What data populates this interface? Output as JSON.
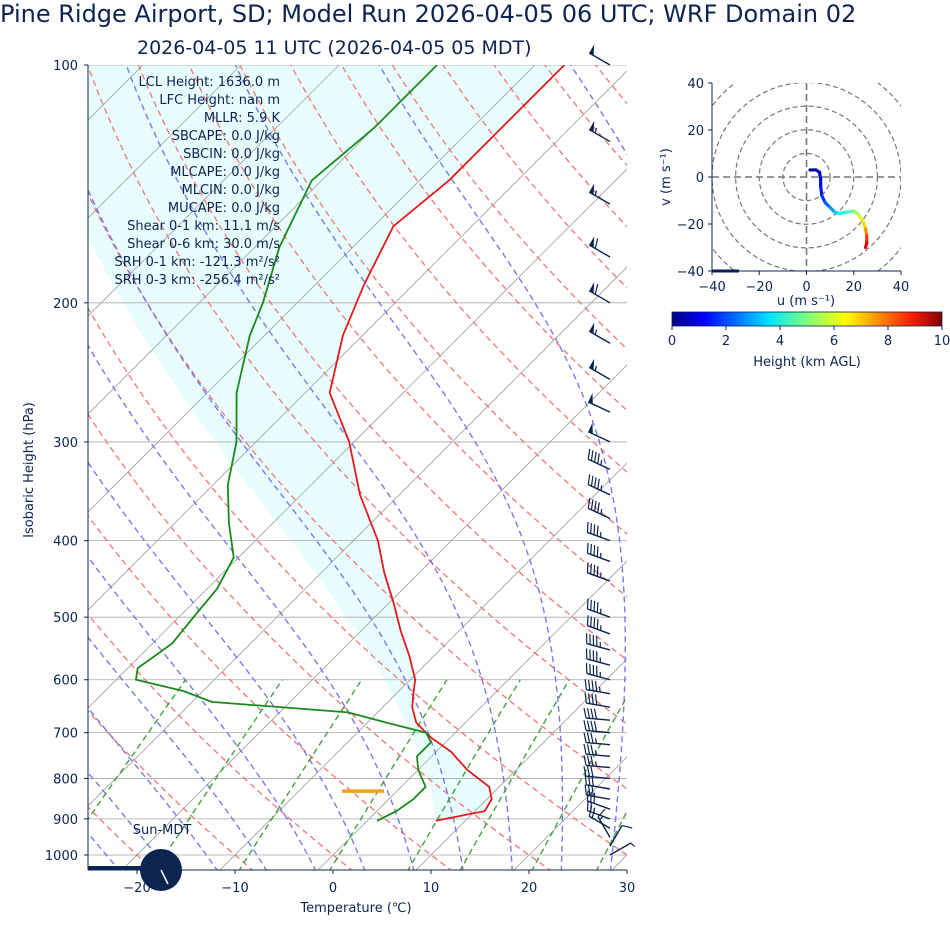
{
  "header": {
    "title": "Pine Ridge Airport, SD; Model Run 2026-04-05 06 UTC; WRF Domain 02",
    "subtitle": "2026-04-05 11 UTC  (2026-04-05 05 MDT)"
  },
  "colors": {
    "text": "#0b2450",
    "temperature": "#e31a1c",
    "dewpoint": "#1a8a1a",
    "dry_adiabat": "#f07070",
    "moist_adiabat": "#6a6aee",
    "mixing_ratio": "#2a9a2a",
    "cape_shade": "#e8fdfd",
    "lcl_marker": "#f5a01a",
    "barb": "#0b2450"
  },
  "indices": [
    "LCL Height: 1636.0 m",
    "LFC Height: nan m",
    "MLLR: 5.9 K",
    "SBCAPE: 0.0 J/kg",
    "SBCIN: 0.0 J/kg",
    "MLCAPE: 0.0 J/kg",
    "MLCIN: 0.0 J/kg",
    "MUCAPE: 0.0 J/kg",
    "Shear 0-1 km: 11.1 m/s",
    "Shear 0-6 km: 30.0 m/s",
    "SRH 0-1 km: -121.3 m²/s²",
    "SRH 0-3 km: -256.4 m²/s²"
  ],
  "sun_label": "Sun-MDT",
  "chart_data": [
    {
      "type": "line",
      "name": "skew-t",
      "xlabel": "Temperature (℃)",
      "ylabel": "Isobaric Height (hPa)",
      "xlim": [
        -26,
        30
      ],
      "ylim": [
        1050,
        100
      ],
      "y_scale": "log",
      "xticks": [
        -20,
        -10,
        0,
        10,
        20,
        30
      ],
      "xtick_labels": [
        "−20",
        "−10",
        "0",
        "10",
        "20",
        "30"
      ],
      "yticks": [
        1000,
        900,
        800,
        700,
        600,
        500,
        400,
        300,
        200,
        100
      ],
      "ytick_labels": [
        "1000",
        "900",
        "800",
        "700",
        "600",
        "500",
        "400",
        "300",
        "200",
        "100"
      ],
      "temperature": {
        "p": [
          905,
          880,
          850,
          820,
          780,
          740,
          710,
          680,
          650,
          620,
          600,
          560,
          520,
          480,
          440,
          400,
          350,
          300,
          260,
          220,
          190,
          160,
          140,
          100
        ],
        "t": [
          7,
          11,
          10.5,
          9,
          5,
          1.5,
          -2,
          -5,
          -7,
          -8.5,
          -9.5,
          -12.5,
          -16,
          -19.5,
          -23.5,
          -27.5,
          -34,
          -40.5,
          -47.5,
          -52,
          -55,
          -58,
          -57,
          -57
        ]
      },
      "dewpoint": {
        "p": [
          905,
          880,
          850,
          820,
          780,
          750,
          720,
          700,
          680,
          660,
          640,
          620,
          600,
          580,
          540,
          500,
          460,
          420,
          380,
          340,
          300,
          260,
          220,
          200,
          170,
          140,
          120,
          100
        ],
        "t": [
          1,
          2,
          2.5,
          2.5,
          0,
          -1.5,
          -1.5,
          -3,
          -8,
          -13,
          -28,
          -32,
          -38,
          -39,
          -38,
          -38.5,
          -39,
          -40.5,
          -44.5,
          -48.5,
          -52,
          -57,
          -61.5,
          -63.5,
          -67.5,
          -71,
          -70,
          -70
        ]
      },
      "lcl_pressure": 830,
      "wind_barbs": {
        "p": [
          1000,
          975,
          950,
          925,
          900,
          875,
          850,
          825,
          800,
          775,
          750,
          725,
          700,
          675,
          650,
          625,
          600,
          575,
          550,
          525,
          500,
          450,
          425,
          400,
          375,
          350,
          325,
          300,
          275,
          250,
          225,
          200,
          175,
          150,
          125,
          100
        ],
        "speed_kt": [
          5,
          10,
          15,
          20,
          25,
          30,
          30,
          30,
          30,
          35,
          35,
          35,
          40,
          40,
          40,
          45,
          45,
          45,
          45,
          45,
          45,
          45,
          45,
          45,
          45,
          45,
          45,
          50,
          50,
          55,
          55,
          60,
          60,
          55,
          55,
          50
        ],
        "direction_deg": [
          60,
          30,
          330,
          300,
          290,
          290,
          280,
          280,
          275,
          275,
          275,
          275,
          275,
          275,
          280,
          280,
          285,
          285,
          285,
          290,
          290,
          290,
          290,
          290,
          295,
          295,
          295,
          295,
          295,
          300,
          300,
          300,
          300,
          300,
          300,
          300
        ]
      }
    },
    {
      "type": "line",
      "name": "hodograph",
      "xlabel": "u (m s⁻¹)",
      "ylabel": "v (m s⁻¹)",
      "xlim": [
        -40,
        40
      ],
      "ylim": [
        -40,
        40
      ],
      "xticks": [
        -40,
        -20,
        0,
        20,
        40
      ],
      "yticks": [
        -40,
        -20,
        0,
        20,
        40
      ],
      "rings": [
        10,
        20,
        30,
        40,
        50
      ],
      "points": [
        {
          "u": 1.5,
          "v": 3,
          "h": 0.1
        },
        {
          "u": 4,
          "v": 3,
          "h": 0.3
        },
        {
          "u": 5.5,
          "v": 2,
          "h": 0.6
        },
        {
          "u": 6,
          "v": -1,
          "h": 0.9
        },
        {
          "u": 6,
          "v": -4,
          "h": 1.2
        },
        {
          "u": 6.5,
          "v": -8,
          "h": 1.6
        },
        {
          "u": 8,
          "v": -11,
          "h": 2.0
        },
        {
          "u": 10,
          "v": -13,
          "h": 2.5
        },
        {
          "u": 12,
          "v": -15,
          "h": 3.0
        },
        {
          "u": 14,
          "v": -15.5,
          "h": 3.6
        },
        {
          "u": 17,
          "v": -15,
          "h": 4.2
        },
        {
          "u": 20,
          "v": -14.5,
          "h": 4.8
        },
        {
          "u": 22,
          "v": -16,
          "h": 5.5
        },
        {
          "u": 24,
          "v": -19,
          "h": 6.2
        },
        {
          "u": 25,
          "v": -22,
          "h": 7.0
        },
        {
          "u": 25.5,
          "v": -25,
          "h": 7.8
        },
        {
          "u": 25.5,
          "v": -28,
          "h": 8.6
        },
        {
          "u": 25,
          "v": -30,
          "h": 9.5
        }
      ],
      "colorbar": {
        "label": "Height (km AGL)",
        "min": 0,
        "max": 10,
        "ticks": [
          0,
          2,
          4,
          6,
          8,
          10
        ],
        "colormap": "jet"
      }
    }
  ]
}
